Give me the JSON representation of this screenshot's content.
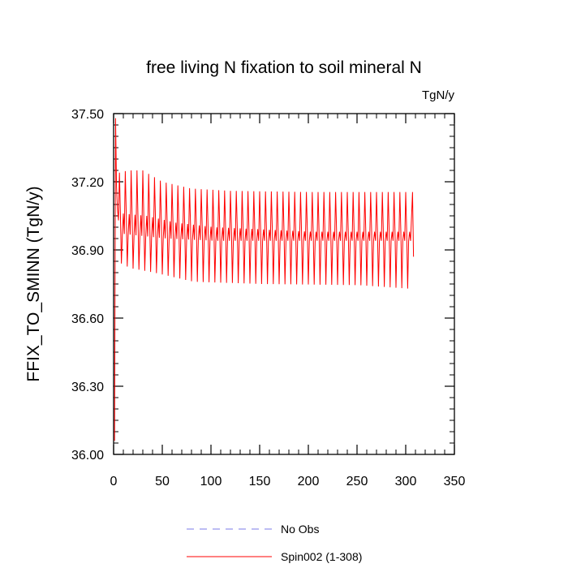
{
  "chart_data": {
    "type": "line",
    "title": "free living N fixation to soil mineral N",
    "units": "TgN/y",
    "xlabel": "",
    "ylabel": "FFIX_TO_SMINN  (TgN/y)",
    "xlim": [
      0,
      350
    ],
    "ylim": [
      36.0,
      37.5
    ],
    "x_ticks": [
      0,
      50,
      100,
      150,
      200,
      250,
      300,
      350
    ],
    "x_tick_labels": [
      "0",
      "50",
      "100",
      "150",
      "200",
      "250",
      "300",
      "350"
    ],
    "y_ticks": [
      36.0,
      36.3,
      36.6,
      36.9,
      37.2,
      37.5
    ],
    "y_tick_labels": [
      "36.00",
      "36.30",
      "36.60",
      "36.90",
      "37.20",
      "37.50"
    ],
    "series": [
      {
        "name": "No Obs",
        "color": "#7b7bea",
        "dash": "dashed",
        "values": []
      },
      {
        "name": "Spin002 (1-308)",
        "color": "#ff0000",
        "dash": "solid",
        "x_range": [
          1,
          308
        ],
        "cycle_period": 6,
        "initial_points": [
          [
            1,
            36.06
          ],
          [
            2,
            37.48
          ],
          [
            3,
            37.18
          ],
          [
            4,
            37.08
          ],
          [
            5,
            37.03
          ]
        ],
        "envelope_upper": [
          [
            6,
            37.24
          ],
          [
            15,
            37.25
          ],
          [
            30,
            37.25
          ],
          [
            50,
            37.2
          ],
          [
            80,
            37.17
          ],
          [
            120,
            37.16
          ],
          [
            200,
            37.155
          ],
          [
            308,
            37.155
          ]
        ],
        "envelope_lower": [
          [
            6,
            36.84
          ],
          [
            15,
            36.82
          ],
          [
            40,
            36.8
          ],
          [
            60,
            36.78
          ],
          [
            80,
            36.76
          ],
          [
            150,
            36.75
          ],
          [
            250,
            36.745
          ],
          [
            300,
            36.73
          ],
          [
            308,
            36.73
          ]
        ],
        "mid_line_level": [
          [
            6,
            37.06
          ],
          [
            30,
            37.05
          ],
          [
            60,
            37.02
          ],
          [
            100,
            37.0
          ],
          [
            200,
            36.98
          ],
          [
            308,
            36.98
          ]
        ],
        "mid_line_low": [
          [
            6,
            36.97
          ],
          [
            50,
            36.95
          ],
          [
            100,
            36.94
          ],
          [
            200,
            36.94
          ],
          [
            308,
            36.94
          ]
        ],
        "last_value": 36.87
      }
    ],
    "legend_position": "bottom-center"
  }
}
